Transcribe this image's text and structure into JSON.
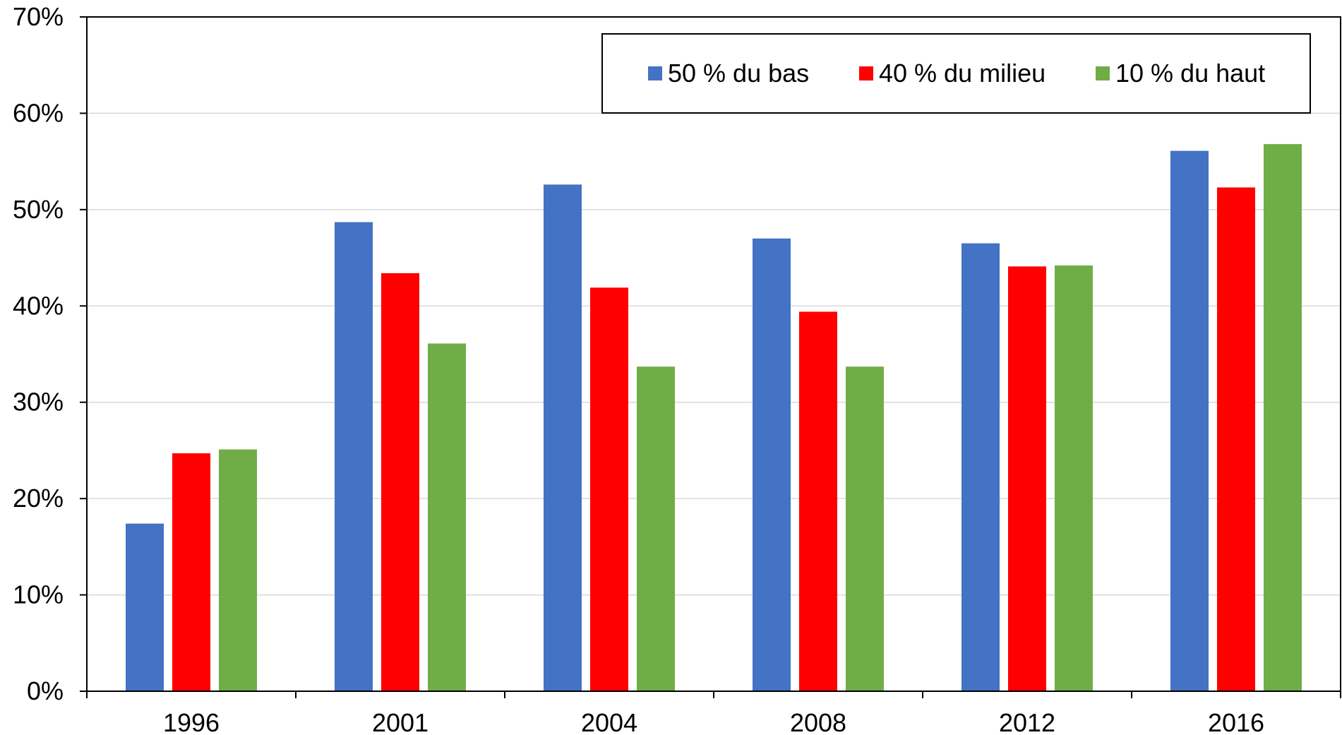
{
  "chart_data": {
    "type": "bar",
    "title": "",
    "xlabel": "",
    "ylabel": "",
    "categories": [
      "1996",
      "2001",
      "2004",
      "2008",
      "2012",
      "2016"
    ],
    "series": [
      {
        "name": "50 % du bas",
        "color": "#4472C4",
        "values": [
          17.4,
          48.7,
          52.6,
          47.0,
          46.5,
          56.1
        ]
      },
      {
        "name": "40 % du milieu",
        "color": "#FF0000",
        "values": [
          24.7,
          43.4,
          41.9,
          39.4,
          44.1,
          52.3
        ]
      },
      {
        "name": "10 % du haut",
        "color": "#70AD47",
        "values": [
          25.1,
          36.1,
          33.7,
          33.7,
          44.2,
          56.8
        ]
      }
    ],
    "ylim": [
      0,
      70
    ],
    "yticks": [
      "0%",
      "10%",
      "20%",
      "30%",
      "40%",
      "50%",
      "60%",
      "70%"
    ],
    "grid": true,
    "legend_position": "top-right"
  }
}
